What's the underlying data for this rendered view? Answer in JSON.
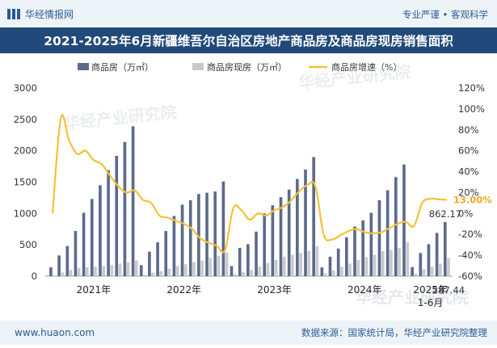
{
  "header": {
    "brand": "华经情报网",
    "tagline": "专业严谨 • 客观科学"
  },
  "title": "2021-2025年6月新疆维吾尔自治区房地产商品房及商品房现房销售面积",
  "footer": {
    "website": "www.huaon.com",
    "source": "数据来源：国家统计局，华经产业研究院整理"
  },
  "watermark": "华经产业研究院",
  "colors": {
    "header_bg": "#eef3f8",
    "title_bg": "#214a7a",
    "footer_bg": "#eef3f8",
    "series_main": "#5b6b8c",
    "series_existing": "#c8cacd",
    "series_growth": "#f5c13a",
    "label_highlight": "#f5a623"
  },
  "chart_data": {
    "type": "bar",
    "categories": [
      "2021-02",
      "2021-03",
      "2021-04",
      "2021-05",
      "2021-06",
      "2021-07",
      "2021-08",
      "2021-09",
      "2021-10",
      "2021-11",
      "2021-12",
      "2022-02",
      "2022-03",
      "2022-04",
      "2022-05",
      "2022-06",
      "2022-07",
      "2022-08",
      "2022-09",
      "2022-10",
      "2022-11",
      "2022-12",
      "2023-02",
      "2023-03",
      "2023-04",
      "2023-05",
      "2023-06",
      "2023-07",
      "2023-08",
      "2023-09",
      "2023-10",
      "2023-11",
      "2023-12",
      "2024-02",
      "2024-03",
      "2024-04",
      "2024-05",
      "2024-06",
      "2024-07",
      "2024-08",
      "2024-09",
      "2024-10",
      "2024-11",
      "2024-12",
      "2025-02",
      "2025-03",
      "2025-04",
      "2025-05",
      "2025-06"
    ],
    "x_tick_labels": [
      "2021年",
      "2022年",
      "2023年",
      "2024年",
      "2025年",
      "1-6月"
    ],
    "series": [
      {
        "name": "商品房（万㎡）",
        "axis": "left",
        "type": "bar",
        "values": [
          140,
          330,
          480,
          720,
          1010,
          1230,
          1450,
          1690,
          1920,
          2140,
          2390,
          175,
          390,
          540,
          720,
          960,
          1140,
          1210,
          1310,
          1330,
          1350,
          1510,
          160,
          450,
          510,
          710,
          1000,
          1130,
          1260,
          1380,
          1550,
          1700,
          1900,
          140,
          310,
          440,
          620,
          790,
          890,
          1010,
          1210,
          1370,
          1580,
          1780,
          145,
          370,
          510,
          690,
          862.17
        ]
      },
      {
        "name": "商品房现房（万㎡）",
        "axis": "left",
        "type": "bar",
        "values": [
          8,
          60,
          100,
          130,
          140,
          150,
          160,
          180,
          200,
          220,
          250,
          20,
          55,
          80,
          120,
          160,
          190,
          220,
          250,
          290,
          320,
          380,
          30,
          70,
          100,
          150,
          210,
          260,
          310,
          340,
          370,
          400,
          480,
          45,
          90,
          150,
          200,
          260,
          300,
          340,
          400,
          420,
          450,
          540,
          40,
          110,
          150,
          200,
          287.44
        ]
      },
      {
        "name": "商品房增速（%）",
        "axis": "right",
        "type": "line",
        "values": [
          0,
          91,
          70,
          57,
          60,
          51,
          47,
          36,
          26,
          20,
          22,
          13,
          10,
          -2,
          -4,
          -7,
          -10,
          -15,
          -24,
          -28,
          -31,
          -35,
          5,
          3,
          -6,
          0,
          -2,
          3,
          6,
          12,
          21,
          27,
          26,
          -20,
          -25,
          -21,
          -17,
          -15,
          -18,
          -19,
          -18,
          -14,
          -10,
          -8,
          -12,
          10,
          14,
          13.5,
          13.0
        ]
      }
    ],
    "labels": {
      "bar_last": "862.17",
      "existing_last": "287.44",
      "growth_last": "13.00%"
    },
    "y_left": {
      "min": 0,
      "max": 3000,
      "ticks": [
        0,
        500,
        1000,
        1500,
        2000,
        2500,
        3000
      ]
    },
    "y_right": {
      "min": -60,
      "max": 120,
      "ticks": [
        -60,
        -40,
        -20,
        0,
        20,
        40,
        60,
        80,
        100,
        120
      ],
      "unit": "%"
    },
    "legend_position": "top-center",
    "grid": false
  }
}
